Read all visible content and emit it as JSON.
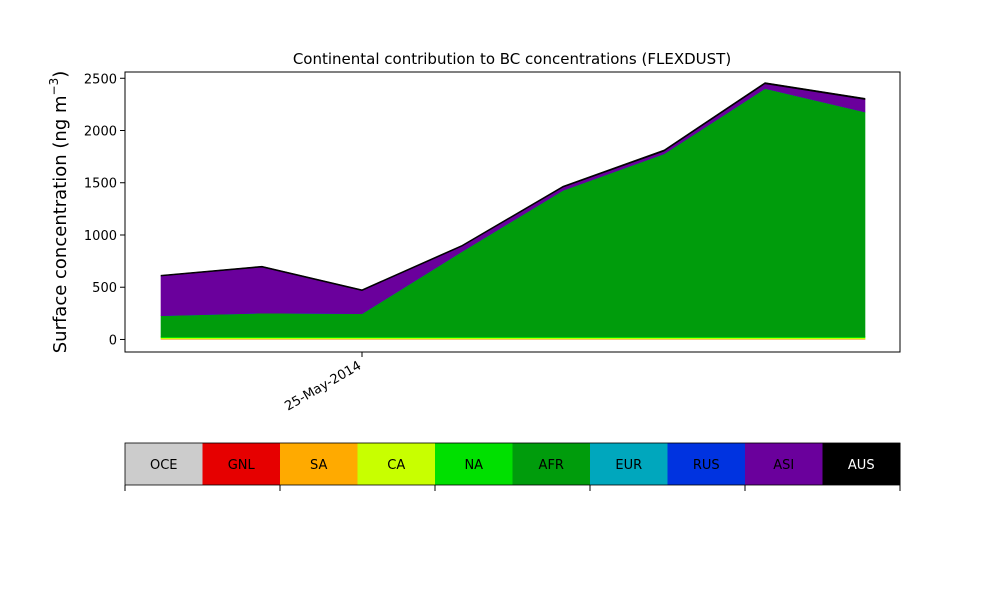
{
  "chart_data": {
    "type": "area",
    "title": "Continental contribution to BC concentrations (FLEXDUST)",
    "ylabel_main": "Surface concentration (ng m",
    "ylabel_sup": "−3",
    "ylabel_close": ")",
    "xlabel": "",
    "x_tick_labels": [
      "25-May-2014"
    ],
    "y_ticks": [
      0,
      500,
      1000,
      1500,
      2000,
      2500
    ],
    "ylim": [
      -120,
      2560
    ],
    "x": [
      "23-May-2014",
      "24-May-2014",
      "25-May-2014",
      "26-May-2014",
      "27-May-2014",
      "28-May-2014",
      "29-May-2014",
      "30-May-2014"
    ],
    "series": [
      {
        "name": "OCE",
        "color": "#cccccc",
        "values": [
          2,
          2,
          2,
          2,
          2,
          2,
          2,
          2
        ]
      },
      {
        "name": "GNL",
        "color": "#e60000",
        "values": [
          0,
          0,
          0,
          0,
          0,
          0,
          0,
          0
        ]
      },
      {
        "name": "SA",
        "color": "#ffaa00",
        "values": [
          5,
          5,
          5,
          5,
          5,
          5,
          5,
          5
        ]
      },
      {
        "name": "CA",
        "color": "#c8ff00",
        "values": [
          10,
          10,
          10,
          10,
          10,
          10,
          10,
          10
        ]
      },
      {
        "name": "NA",
        "color": "#00e000",
        "values": [
          10,
          10,
          10,
          10,
          10,
          10,
          10,
          10
        ]
      },
      {
        "name": "AFR",
        "color": "#009c0c",
        "values": [
          200,
          225,
          220,
          815,
          1400,
          1750,
          2375,
          2150
        ]
      },
      {
        "name": "EUR",
        "color": "#00a7bd",
        "values": [
          0,
          0,
          0,
          0,
          0,
          0,
          0,
          0
        ]
      },
      {
        "name": "RUS",
        "color": "#0033e0",
        "values": [
          0,
          0,
          0,
          0,
          0,
          0,
          0,
          0
        ]
      },
      {
        "name": "ASI",
        "color": "#6a009c",
        "values": [
          380,
          440,
          220,
          50,
          30,
          25,
          45,
          120
        ]
      },
      {
        "name": "AUS",
        "color": "#000000",
        "values": [
          8,
          10,
          10,
          10,
          10,
          12,
          12,
          12
        ]
      }
    ],
    "grid": false,
    "legend_placement": "bottom"
  },
  "legend": {
    "items": [
      {
        "label": "OCE",
        "color": "#cccccc",
        "text_color": "#000000"
      },
      {
        "label": "GNL",
        "color": "#e60000",
        "text_color": "#000000"
      },
      {
        "label": "SA",
        "color": "#ffaa00",
        "text_color": "#000000"
      },
      {
        "label": "CA",
        "color": "#c8ff00",
        "text_color": "#000000"
      },
      {
        "label": "NA",
        "color": "#00e000",
        "text_color": "#000000"
      },
      {
        "label": "AFR",
        "color": "#009c0c",
        "text_color": "#000000"
      },
      {
        "label": "EUR",
        "color": "#00a7bd",
        "text_color": "#000000"
      },
      {
        "label": "RUS",
        "color": "#0033e0",
        "text_color": "#000000"
      },
      {
        "label": "ASI",
        "color": "#6a009c",
        "text_color": "#000000"
      },
      {
        "label": "AUS",
        "color": "#000000",
        "text_color": "#ffffff"
      }
    ]
  }
}
